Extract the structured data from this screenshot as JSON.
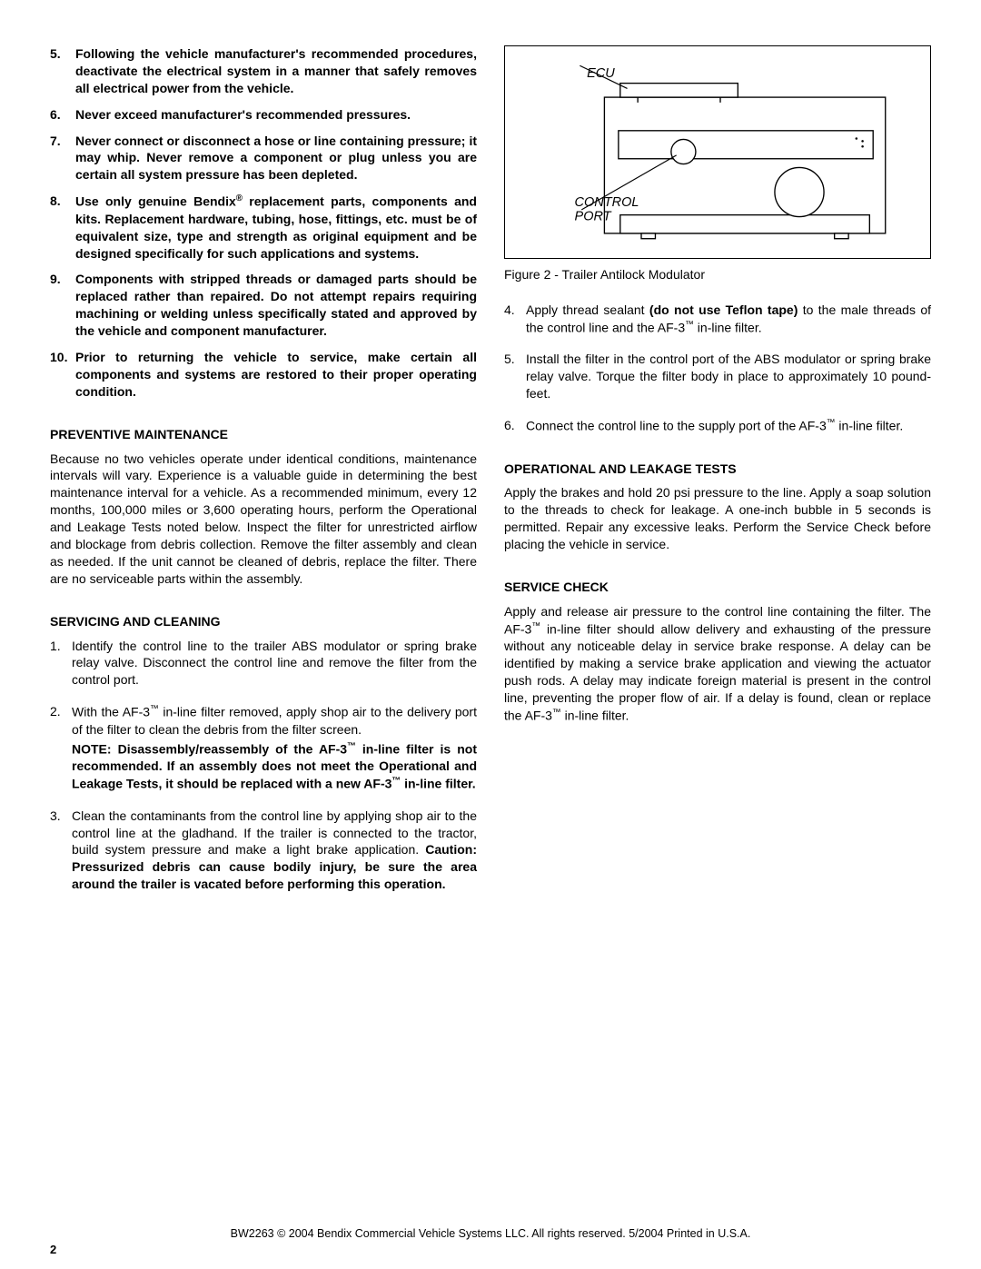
{
  "left": {
    "warnings": [
      {
        "num": "5.",
        "text": "Following the vehicle manufacturer's recommended procedures, deactivate the electrical system in a manner that safely removes all electrical power from the vehicle."
      },
      {
        "num": "6.",
        "text": "Never exceed manufacturer's recommended pressures."
      },
      {
        "num": "7.",
        "text": "Never connect or disconnect a hose or line containing pressure; it may whip. Never remove a component or plug unless you are certain all system pressure has been depleted."
      },
      {
        "num": "8.",
        "text_html": "Use only genuine Bendix<span class='sup'>®</span> replacement parts, components and kits. Replacement hardware, tubing, hose, fittings, etc. must be of equivalent size, type and strength as original equipment and be designed specifically for such applications and systems."
      },
      {
        "num": "9.",
        "text": "Components with stripped threads or damaged parts should be replaced rather than repaired.  Do not attempt repairs requiring machining or welding unless specifically stated and approved by the vehicle and component manufacturer."
      },
      {
        "num": "10.",
        "text": "Prior to returning the vehicle to service, make certain all components and systems are restored to their proper operating condition."
      }
    ],
    "preventive_heading": "PREVENTIVE MAINTENANCE",
    "preventive_body": "Because no two vehicles operate under identical conditions, maintenance intervals will vary.  Experience is a valuable guide in determining the best maintenance interval for a vehicle.  As a recommended minimum, every 12 months, 100,000 miles or 3,600 operating hours, perform the Operational and Leakage Tests noted below.  Inspect the filter for unrestricted airflow and blockage from debris collection.  Remove the filter assembly and clean as needed.  If the unit cannot be cleaned of debris, replace the filter.  There are no serviceable parts within the assembly.",
    "servicing_heading": "SERVICING AND CLEANING",
    "servicing_steps": [
      {
        "num": "1.",
        "body": "Identify the control line to the trailer ABS modulator or spring brake relay valve.  Disconnect the control line and remove the filter from the control port."
      },
      {
        "num": "2.",
        "body_html": "With the AF-3<span class='sup'>™</span> in-line filter removed, apply shop air to the delivery port of the filter to clean the debris from the filter screen.",
        "note_html": "NOTE:  Disassembly/reassembly of the AF-3<span class='sup'>™</span> in-line filter is not recommended.  If an assembly does not meet the Operational and Leakage Tests, it should be replaced with a new AF-3<span class='sup'>™</span> in-line filter."
      },
      {
        "num": "3.",
        "body_html": "Clean the contaminants from the control line by applying shop air to the control line at the gladhand. If the trailer is connected to the tractor, build system pressure and make a light brake application.  <span class='caution-seg'>Caution: Pressurized debris can cause bodily injury, be sure the area around the trailer is vacated before performing this operation.</span>"
      }
    ]
  },
  "right": {
    "figure": {
      "ecu_label": "ECU",
      "cp_label1": "CONTROL",
      "cp_label2": "PORT",
      "caption": "Figure 2 - Trailer Antilock Modulator",
      "colors": {
        "stroke": "#000000",
        "fill": "#ffffff"
      },
      "line_width": 1.4
    },
    "steps_cont": [
      {
        "num": "4.",
        "body_html": "Apply thread sealant <span class='caution-seg'>(do not use Teflon tape)</span> to the male threads of the control line and the AF-3<span class='sup'>™</span> in-line filter."
      },
      {
        "num": "5.",
        "body": "Install the filter in the control port of the ABS modulator or spring brake relay valve.  Torque the filter body in place to approximately 10 pound-feet."
      },
      {
        "num": "6.",
        "body_html": "Connect the control line to the supply port of the AF-3<span class='sup'>™</span> in-line filter."
      }
    ],
    "op_heading": "OPERATIONAL AND LEAKAGE TESTS",
    "op_body": "Apply the brakes and hold 20 psi pressure to the line.  Apply a soap solution to the threads to check for leakage.  A one-inch bubble in 5 seconds is permitted.  Repair any excessive leaks.  Perform the Service Check before placing the vehicle in service.",
    "svc_heading": "SERVICE CHECK",
    "svc_body_html": "Apply and release air pressure to the control line containing the filter.  The AF-3<span class='sup'>™</span> in-line filter should allow delivery and exhausting of  the pressure without any noticeable delay in service brake response.  A delay can be identified by making a service brake application and viewing the actuator push rods.  A delay may indicate foreign material is present in the control line, preventing the proper flow of air.  If a delay is found, clean or replace the AF-3<span class='sup'>™</span> in-line filter."
  },
  "footer": "BW2263 © 2004 Bendix Commercial Vehicle Systems LLC.  All rights reserved.  5/2004  Printed in U.S.A.",
  "page_num": "2"
}
